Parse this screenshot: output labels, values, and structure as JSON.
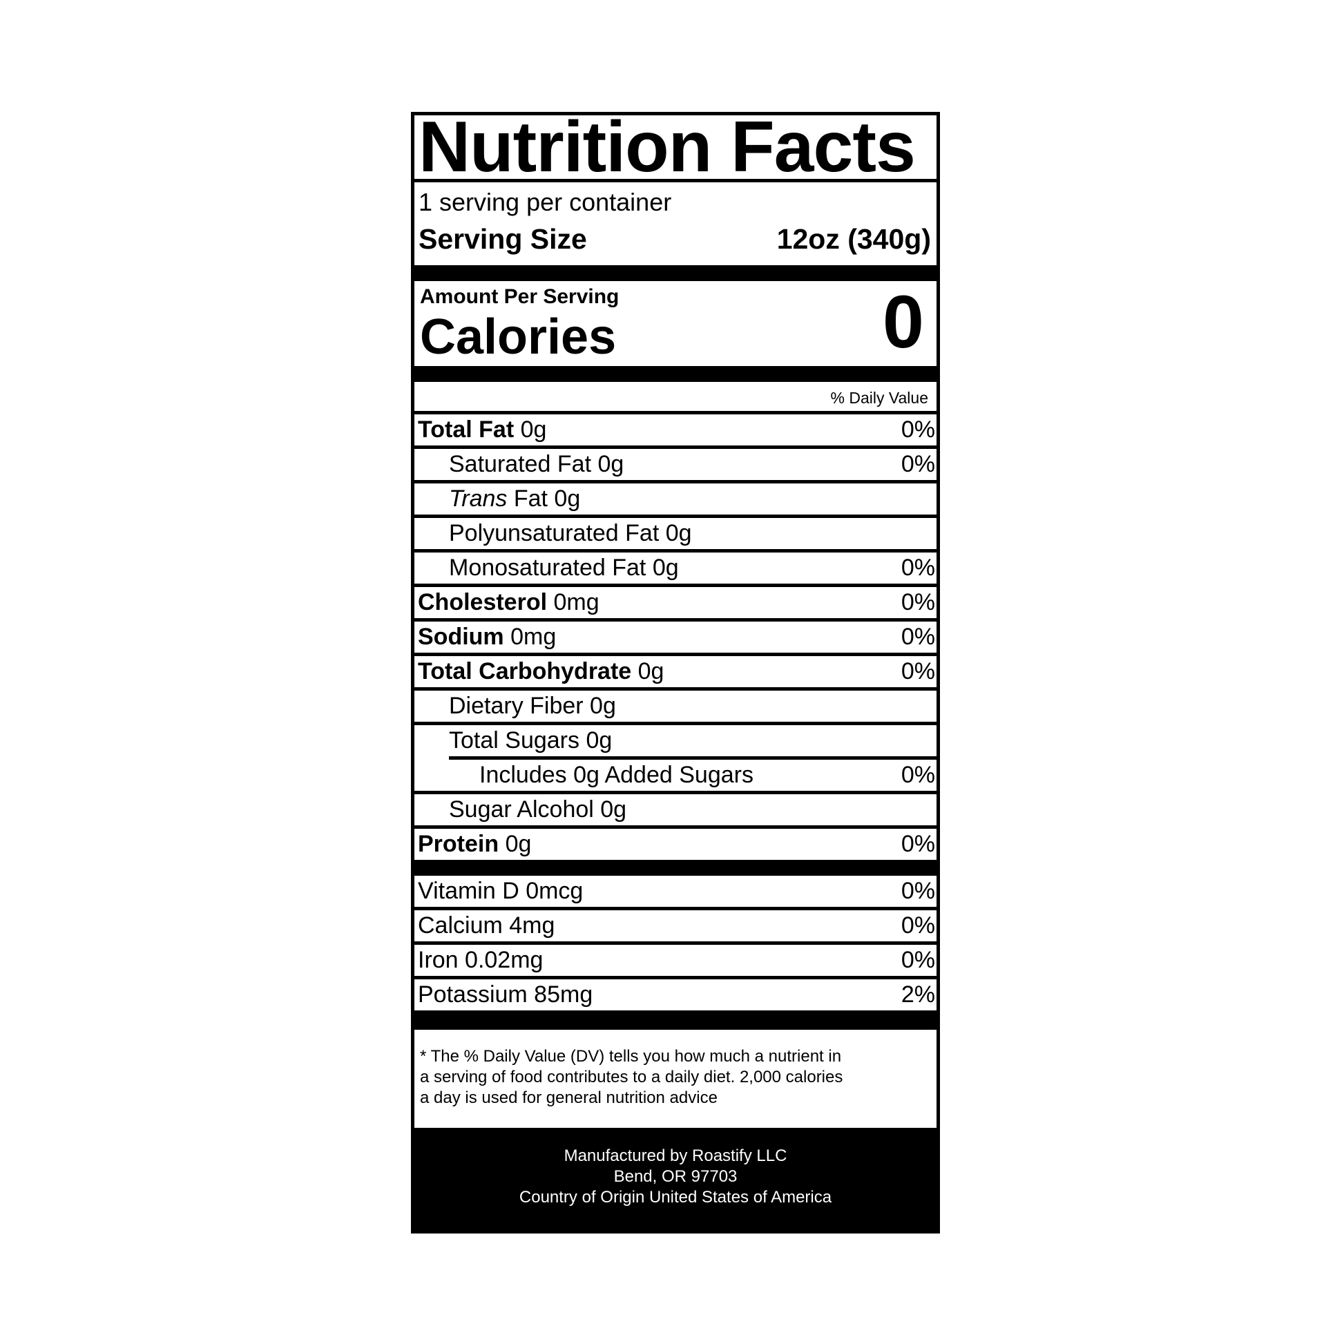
{
  "title": "Nutrition Facts",
  "servings_per_container": "1 serving per container",
  "serving_size": {
    "label": "Serving Size",
    "value": "12oz (340g)"
  },
  "amount_per_serving": "Amount Per Serving",
  "calories": {
    "label": "Calories",
    "value": "0"
  },
  "daily_value_header": "% Daily Value",
  "nutrients": [
    {
      "name": "Total Fat",
      "amount": "0g",
      "dv": "0%"
    },
    {
      "name": "Saturated Fat 0g",
      "amount": "",
      "dv": "0%"
    },
    {
      "name_italic": "Trans",
      "name": " Fat 0g",
      "dv": ""
    },
    {
      "name": "Polyunsaturated Fat 0g",
      "dv": ""
    },
    {
      "name": "Monosaturated Fat 0g",
      "dv": "0%"
    },
    {
      "name": "Cholesterol",
      "amount": "0mg",
      "dv": "0%"
    },
    {
      "name": "Sodium",
      "amount": "0mg",
      "dv": "0%"
    },
    {
      "name": "Total Carbohydrate",
      "amount": "0g",
      "dv": "0%"
    },
    {
      "name": "Dietary Fiber 0g",
      "dv": ""
    },
    {
      "name": "Total Sugars 0g",
      "dv": ""
    },
    {
      "name": "Includes 0g Added Sugars",
      "dv": "0%"
    },
    {
      "name": "Sugar Alcohol 0g",
      "dv": ""
    },
    {
      "name": "Protein",
      "amount": "0g",
      "dv": "0%"
    }
  ],
  "vitamins": [
    {
      "name": "Vitamin D 0mcg",
      "dv": "0%"
    },
    {
      "name": "Calcium 4mg",
      "dv": "0%"
    },
    {
      "name": "Iron 0.02mg",
      "dv": "0%"
    },
    {
      "name": "Potassium 85mg",
      "dv": "2%"
    }
  ],
  "footnote": [
    "* The % Daily Value (DV) tells you how much a nutrient in",
    "a serving of food contributes to a daily diet. 2,000 calories",
    "a day is used for general nutrition advice"
  ],
  "manufacturer": [
    "Manufactured by Roastify LLC",
    "Bend, OR 97703",
    "Country of Origin United States of America"
  ]
}
